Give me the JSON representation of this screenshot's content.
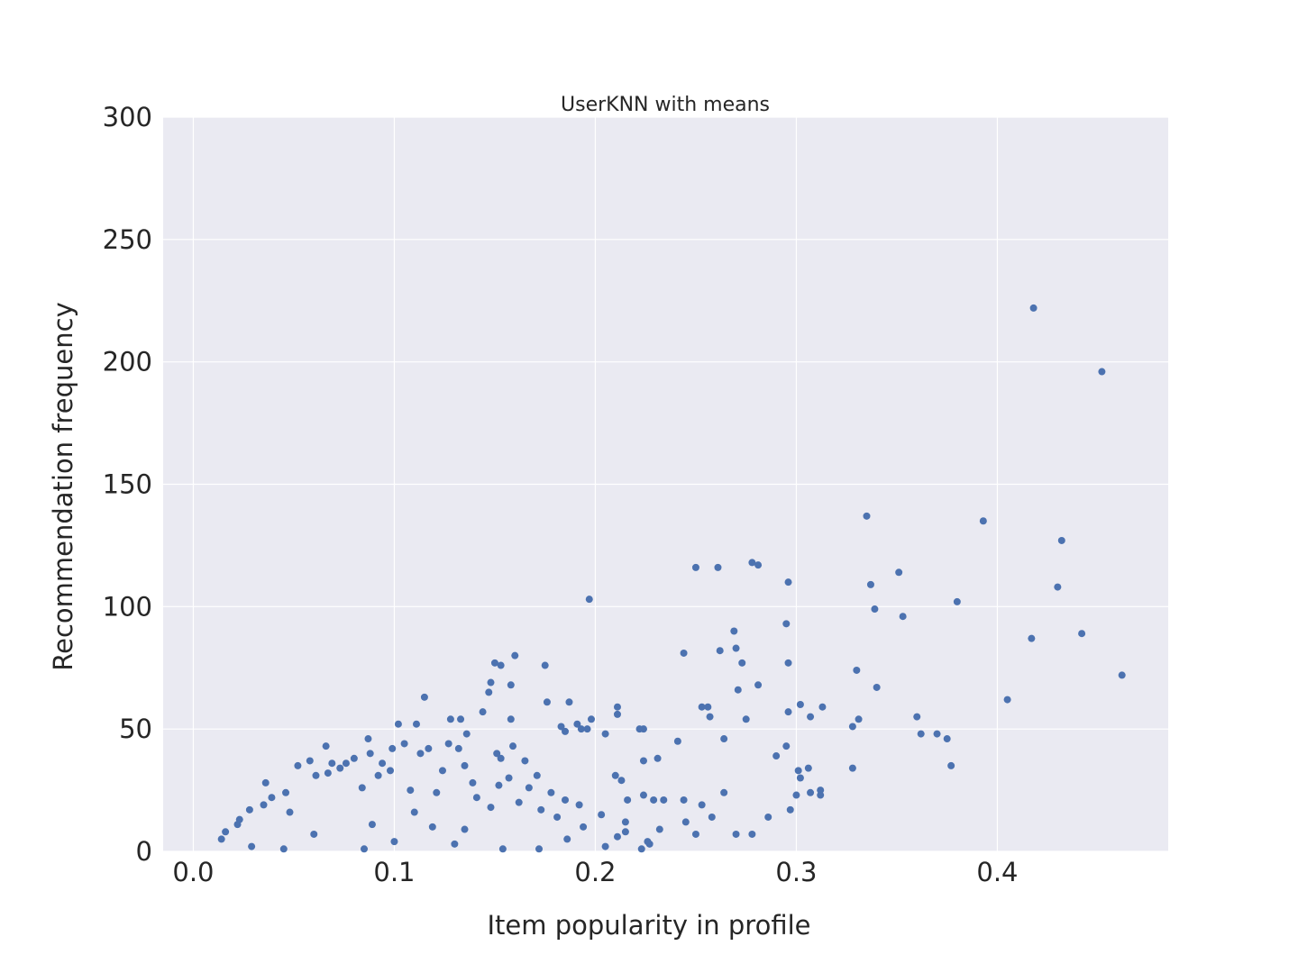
{
  "chart_data": {
    "type": "scatter",
    "title": "UserKNN with means",
    "xlabel": "Item popularity in profile",
    "ylabel": "Recommendation frequency",
    "xlim": [
      -0.015,
      0.485
    ],
    "ylim": [
      0,
      300
    ],
    "x_ticks": [
      0.0,
      0.1,
      0.2,
      0.3,
      0.4
    ],
    "x_tick_labels": [
      "0.0",
      "0.1",
      "0.2",
      "0.3",
      "0.4"
    ],
    "y_ticks": [
      0,
      50,
      100,
      150,
      200,
      250,
      300
    ],
    "y_tick_labels": [
      "0",
      "50",
      "100",
      "150",
      "200",
      "250",
      "300"
    ],
    "grid": true,
    "background_color": "#eaeaf2",
    "marker_color": "#4c72b0",
    "series": [
      {
        "points": [
          [
            0.418,
            222
          ],
          [
            0.452,
            196
          ],
          [
            0.335,
            137
          ],
          [
            0.393,
            135
          ],
          [
            0.432,
            127
          ],
          [
            0.278,
            118
          ],
          [
            0.281,
            117
          ],
          [
            0.25,
            116
          ],
          [
            0.261,
            116
          ],
          [
            0.351,
            114
          ],
          [
            0.296,
            110
          ],
          [
            0.337,
            109
          ],
          [
            0.43,
            108
          ],
          [
            0.197,
            103
          ],
          [
            0.38,
            102
          ],
          [
            0.339,
            99
          ],
          [
            0.353,
            96
          ],
          [
            0.295,
            93
          ],
          [
            0.269,
            90
          ],
          [
            0.442,
            89
          ],
          [
            0.417,
            87
          ],
          [
            0.27,
            83
          ],
          [
            0.262,
            82
          ],
          [
            0.244,
            81
          ],
          [
            0.16,
            80
          ],
          [
            0.15,
            77
          ],
          [
            0.273,
            77
          ],
          [
            0.296,
            77
          ],
          [
            0.153,
            76
          ],
          [
            0.175,
            76
          ],
          [
            0.33,
            74
          ],
          [
            0.462,
            72
          ],
          [
            0.148,
            69
          ],
          [
            0.158,
            68
          ],
          [
            0.281,
            68
          ],
          [
            0.34,
            67
          ],
          [
            0.271,
            66
          ],
          [
            0.147,
            65
          ],
          [
            0.115,
            63
          ],
          [
            0.405,
            62
          ],
          [
            0.176,
            61
          ],
          [
            0.187,
            61
          ],
          [
            0.302,
            60
          ],
          [
            0.211,
            59
          ],
          [
            0.253,
            59
          ],
          [
            0.256,
            59
          ],
          [
            0.313,
            59
          ],
          [
            0.144,
            57
          ],
          [
            0.296,
            57
          ],
          [
            0.211,
            56
          ],
          [
            0.257,
            55
          ],
          [
            0.307,
            55
          ],
          [
            0.36,
            55
          ],
          [
            0.128,
            54
          ],
          [
            0.133,
            54
          ],
          [
            0.158,
            54
          ],
          [
            0.198,
            54
          ],
          [
            0.275,
            54
          ],
          [
            0.331,
            54
          ],
          [
            0.102,
            52
          ],
          [
            0.111,
            52
          ],
          [
            0.191,
            52
          ],
          [
            0.183,
            51
          ],
          [
            0.328,
            51
          ],
          [
            0.193,
            50
          ],
          [
            0.222,
            50
          ],
          [
            0.224,
            50
          ],
          [
            0.196,
            50
          ],
          [
            0.185,
            49
          ],
          [
            0.205,
            48
          ],
          [
            0.136,
            48
          ],
          [
            0.362,
            48
          ],
          [
            0.37,
            48
          ],
          [
            0.375,
            46
          ],
          [
            0.264,
            46
          ],
          [
            0.087,
            46
          ],
          [
            0.241,
            45
          ],
          [
            0.105,
            44
          ],
          [
            0.127,
            44
          ],
          [
            0.159,
            43
          ],
          [
            0.066,
            43
          ],
          [
            0.295,
            43
          ],
          [
            0.117,
            42
          ],
          [
            0.132,
            42
          ],
          [
            0.099,
            42
          ],
          [
            0.088,
            40
          ],
          [
            0.113,
            40
          ],
          [
            0.151,
            40
          ],
          [
            0.29,
            39
          ],
          [
            0.08,
            38
          ],
          [
            0.153,
            38
          ],
          [
            0.058,
            37
          ],
          [
            0.165,
            37
          ],
          [
            0.224,
            37
          ],
          [
            0.231,
            38
          ],
          [
            0.094,
            36
          ],
          [
            0.069,
            36
          ],
          [
            0.076,
            36
          ],
          [
            0.135,
            35
          ],
          [
            0.377,
            35
          ],
          [
            0.052,
            35
          ],
          [
            0.073,
            34
          ],
          [
            0.328,
            34
          ],
          [
            0.301,
            33
          ],
          [
            0.306,
            34
          ],
          [
            0.124,
            33
          ],
          [
            0.098,
            33
          ],
          [
            0.067,
            32
          ],
          [
            0.061,
            31
          ],
          [
            0.171,
            31
          ],
          [
            0.092,
            31
          ],
          [
            0.21,
            31
          ],
          [
            0.157,
            30
          ],
          [
            0.302,
            30
          ],
          [
            0.213,
            29
          ],
          [
            0.036,
            28
          ],
          [
            0.139,
            28
          ],
          [
            0.152,
            27
          ],
          [
            0.167,
            26
          ],
          [
            0.084,
            26
          ],
          [
            0.108,
            25
          ],
          [
            0.121,
            24
          ],
          [
            0.046,
            24
          ],
          [
            0.178,
            24
          ],
          [
            0.3,
            23
          ],
          [
            0.312,
            23
          ],
          [
            0.312,
            25
          ],
          [
            0.307,
            24
          ],
          [
            0.264,
            24
          ],
          [
            0.224,
            23
          ],
          [
            0.039,
            22
          ],
          [
            0.141,
            22
          ],
          [
            0.244,
            21
          ],
          [
            0.253,
            19
          ],
          [
            0.162,
            20
          ],
          [
            0.185,
            21
          ],
          [
            0.216,
            21
          ],
          [
            0.229,
            21
          ],
          [
            0.234,
            21
          ],
          [
            0.192,
            19
          ],
          [
            0.035,
            19
          ],
          [
            0.148,
            18
          ],
          [
            0.028,
            17
          ],
          [
            0.173,
            17
          ],
          [
            0.297,
            17
          ],
          [
            0.048,
            16
          ],
          [
            0.11,
            16
          ],
          [
            0.203,
            15
          ],
          [
            0.258,
            14
          ],
          [
            0.181,
            14
          ],
          [
            0.286,
            14
          ],
          [
            0.023,
            13
          ],
          [
            0.215,
            12
          ],
          [
            0.245,
            12
          ],
          [
            0.022,
            11
          ],
          [
            0.089,
            11
          ],
          [
            0.119,
            10
          ],
          [
            0.135,
            9
          ],
          [
            0.194,
            10
          ],
          [
            0.232,
            9
          ],
          [
            0.215,
            8
          ],
          [
            0.016,
            8
          ],
          [
            0.25,
            7
          ],
          [
            0.27,
            7
          ],
          [
            0.278,
            7
          ],
          [
            0.06,
            7
          ],
          [
            0.211,
            6
          ],
          [
            0.186,
            5
          ],
          [
            0.014,
            5
          ],
          [
            0.226,
            4
          ],
          [
            0.1,
            4
          ],
          [
            0.227,
            3
          ],
          [
            0.13,
            3
          ],
          [
            0.029,
            2
          ],
          [
            0.205,
            2
          ],
          [
            0.223,
            1
          ],
          [
            0.154,
            1
          ],
          [
            0.172,
            1
          ],
          [
            0.045,
            1
          ],
          [
            0.085,
            1
          ]
        ]
      }
    ]
  }
}
